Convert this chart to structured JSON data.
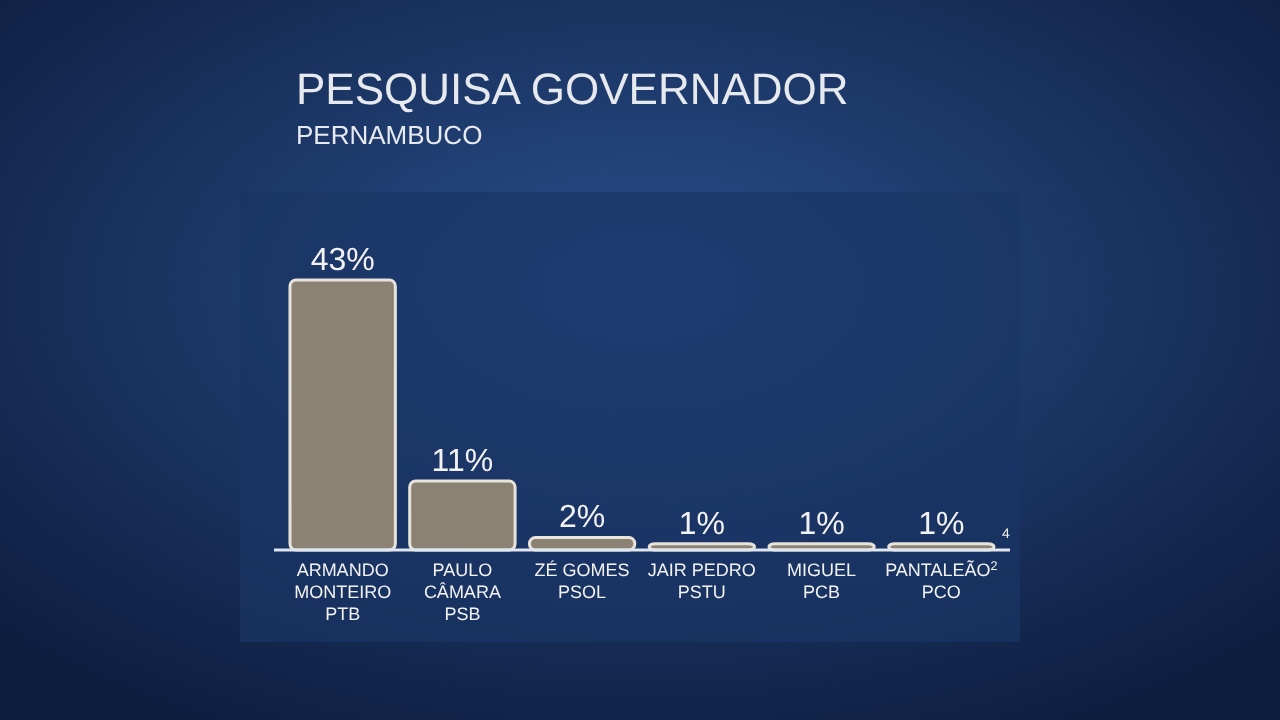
{
  "chart_data": {
    "type": "bar",
    "title": "PESQUISA GOVERNADOR",
    "subtitle": "PERNAMBUCO",
    "categories": [
      "ARMANDO\nMONTEIRO\nPTB",
      "PAULO\nCÂMARA\nPSB",
      "ZÉ GOMES\nPSOL",
      "JAIR PEDRO\nPSTU",
      "MIGUEL\nPCB",
      "PANTALEÃO$^{2}$\nPCO"
    ],
    "values": [
      43,
      11,
      2,
      1,
      1,
      1
    ],
    "value_labels": [
      "43%",
      "11%",
      "2%",
      "1%",
      "1%",
      "1%"
    ],
    "color": "#8c8274",
    "annotations": [
      "4"
    ]
  }
}
